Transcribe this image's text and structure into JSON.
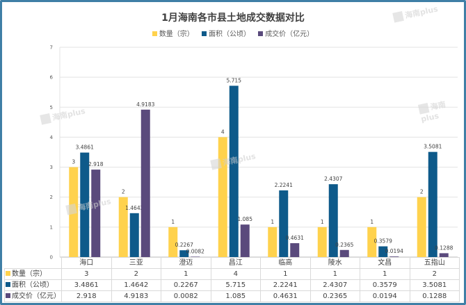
{
  "watermark": "海南plus",
  "chart_data": {
    "type": "bar",
    "title": "1月海南各市县土地成交数据对比",
    "xlabel": "",
    "ylabel": "",
    "ylim": [
      0,
      7
    ],
    "yticks": [
      "0",
      "1",
      "2",
      "3",
      "4",
      "5",
      "6",
      "7"
    ],
    "grid": true,
    "legend_position": "top",
    "categories": [
      "海口",
      "三亚",
      "澄迈",
      "昌江",
      "临高",
      "陵水",
      "文昌",
      "五指山"
    ],
    "series": [
      {
        "name": "数量（宗）",
        "color": "#ffd24d",
        "values": [
          3,
          2,
          1,
          4,
          1,
          1,
          1,
          2
        ],
        "labels": [
          "3",
          "2",
          "1",
          "4",
          "1",
          "1",
          "1",
          "2"
        ]
      },
      {
        "name": "面积（公顷）",
        "color": "#0e5a8a",
        "values": [
          3.4861,
          1.4642,
          0.2267,
          5.715,
          2.2241,
          2.4307,
          0.3579,
          3.5081
        ],
        "labels": [
          "3.4861",
          "1.4642",
          "0.2267",
          "5.715",
          "2.2241",
          "2.4307",
          "0.3579",
          "3.5081"
        ]
      },
      {
        "name": "成交价（亿元）",
        "color": "#5a4a7c",
        "values": [
          2.918,
          4.9183,
          0.0082,
          1.085,
          0.4631,
          0.2365,
          0.0194,
          0.1288
        ],
        "labels": [
          "2.918",
          "4.9183",
          "0.0082",
          "1.085",
          "0.4631",
          "0.2365",
          "0.0194",
          "0.1288"
        ]
      }
    ]
  }
}
